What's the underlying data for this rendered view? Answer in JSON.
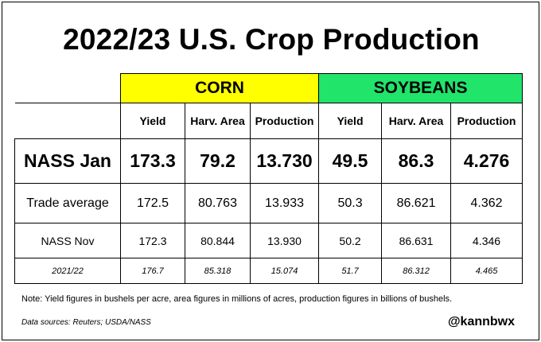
{
  "title": "2022/23 U.S. Crop Production",
  "groups": {
    "corn": "CORN",
    "soybeans": "SOYBEANS"
  },
  "colors": {
    "corn": "#ffff00",
    "soybeans": "#21e46b"
  },
  "columns": [
    "Yield",
    "Harv. Area",
    "Production",
    "Yield",
    "Harv. Area",
    "Production"
  ],
  "rows": [
    {
      "label": "NASS Jan",
      "values": [
        "173.3",
        "79.2",
        "13.730",
        "49.5",
        "86.3",
        "4.276"
      ]
    },
    {
      "label": "Trade average",
      "values": [
        "172.5",
        "80.763",
        "13.933",
        "50.3",
        "86.621",
        "4.362"
      ]
    },
    {
      "label": "NASS Nov",
      "values": [
        "172.3",
        "80.844",
        "13.930",
        "50.2",
        "86.631",
        "4.346"
      ]
    },
    {
      "label": "2021/22",
      "values": [
        "176.7",
        "85.318",
        "15.074",
        "51.7",
        "86.312",
        "4.465"
      ]
    }
  ],
  "note": "Note: Yield figures in bushels per acre, area figures in millions of acres, production figures in billions of bushels.",
  "sources": "Data sources: Reuters; USDA/NASS",
  "handle": "@kannbwx"
}
